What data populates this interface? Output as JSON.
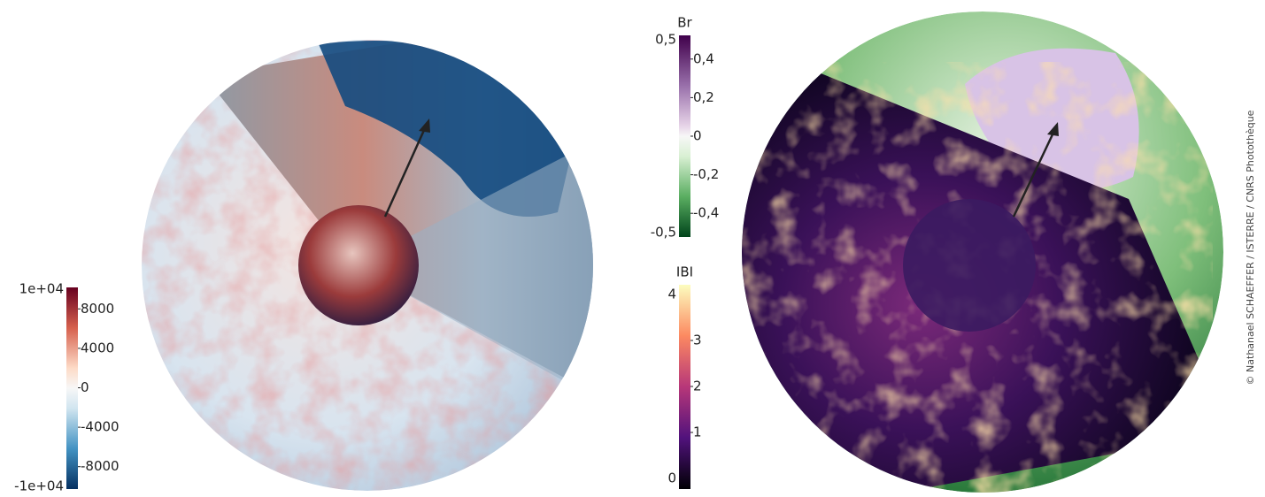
{
  "colorbars": [
    {
      "lim": [
        {
          "value": -10000,
          "label": "-1e+04"
        },
        {
          "value": 10000,
          "label": "1e+04"
        }
      ],
      "ticks": [
        8000,
        4000,
        0,
        -4000,
        -8000
      ]
    },
    {
      "title": "Br",
      "lim": [
        {
          "value": -0.5,
          "label": "-0,5"
        },
        {
          "value": 0.5,
          "label": "0,5"
        }
      ],
      "ticks": [
        {
          "value": 0.4,
          "label": "0,4"
        },
        {
          "value": 0.2,
          "label": "0,2"
        },
        0,
        {
          "value": -0.2,
          "label": "-0,2"
        },
        {
          "value": -0.4,
          "label": "-0,4"
        }
      ]
    },
    {
      "title": "IBI",
      "lim": [
        0,
        4
      ],
      "ticks": [
        3,
        2,
        1
      ]
    }
  ],
  "credit": "© Nathanael SCHAEFFER / ISTERRE / CNRS Photothèque"
}
